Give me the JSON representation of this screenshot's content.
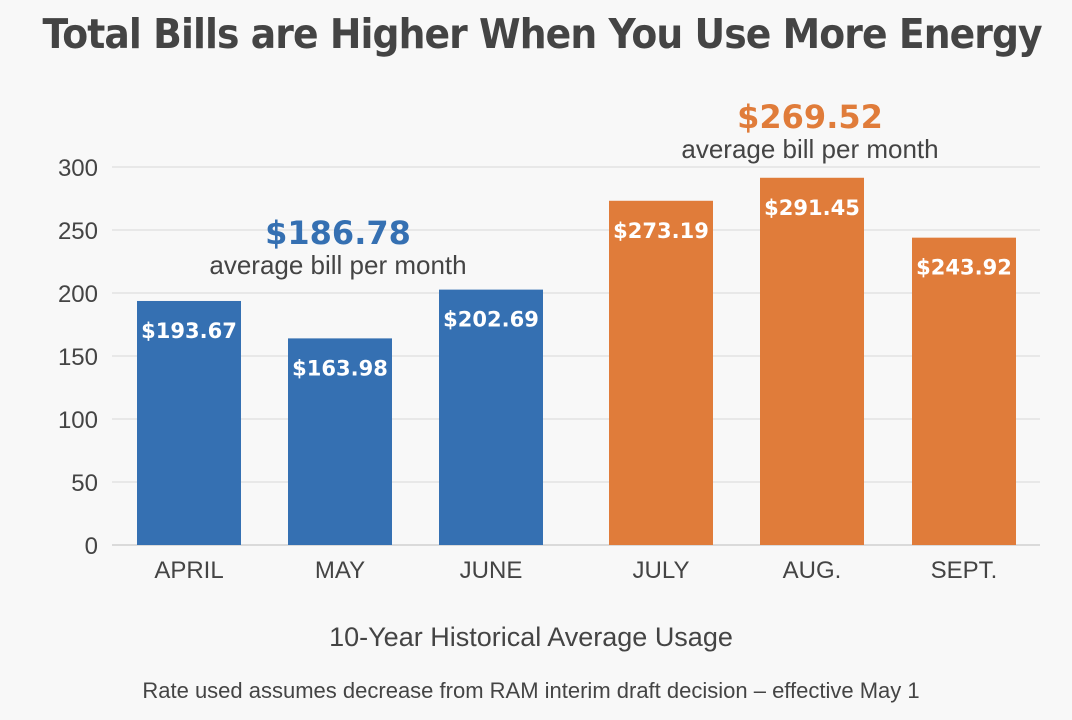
{
  "colors": {
    "blue": "#3570b2",
    "orange": "#e07c3a",
    "text": "#444444",
    "gridline": "#d8d8d8",
    "bar_label": "#ffffff"
  },
  "chart_data": {
    "type": "bar",
    "title": "Total Bills are Higher When You Use More Energy",
    "categories": [
      "APRIL",
      "MAY",
      "JUNE",
      "JULY",
      "AUG.",
      "SEPT."
    ],
    "values": [
      193.67,
      163.98,
      202.69,
      273.19,
      291.45,
      243.92
    ],
    "value_labels": [
      "$193.67",
      "$163.98",
      "$202.69",
      "$273.19",
      "$291.45",
      "$243.92"
    ],
    "bar_colors": [
      "#3570b2",
      "#3570b2",
      "#3570b2",
      "#e07c3a",
      "#e07c3a",
      "#e07c3a"
    ],
    "xlabel": "10-Year Historical Average Usage",
    "ylabel": "",
    "ylim": [
      0,
      300
    ],
    "yticks": [
      0,
      50,
      100,
      150,
      200,
      250,
      300
    ],
    "grid": true,
    "annotations": [
      {
        "value": "$186.78",
        "text": "average bill per month",
        "color": "#3570b2",
        "group": "spring"
      },
      {
        "value": "$269.52",
        "text": "average bill per month",
        "color": "#e07c3a",
        "group": "summer"
      }
    ],
    "footnote": "Rate used assumes decrease from RAM interim draft decision – effective May 1"
  }
}
